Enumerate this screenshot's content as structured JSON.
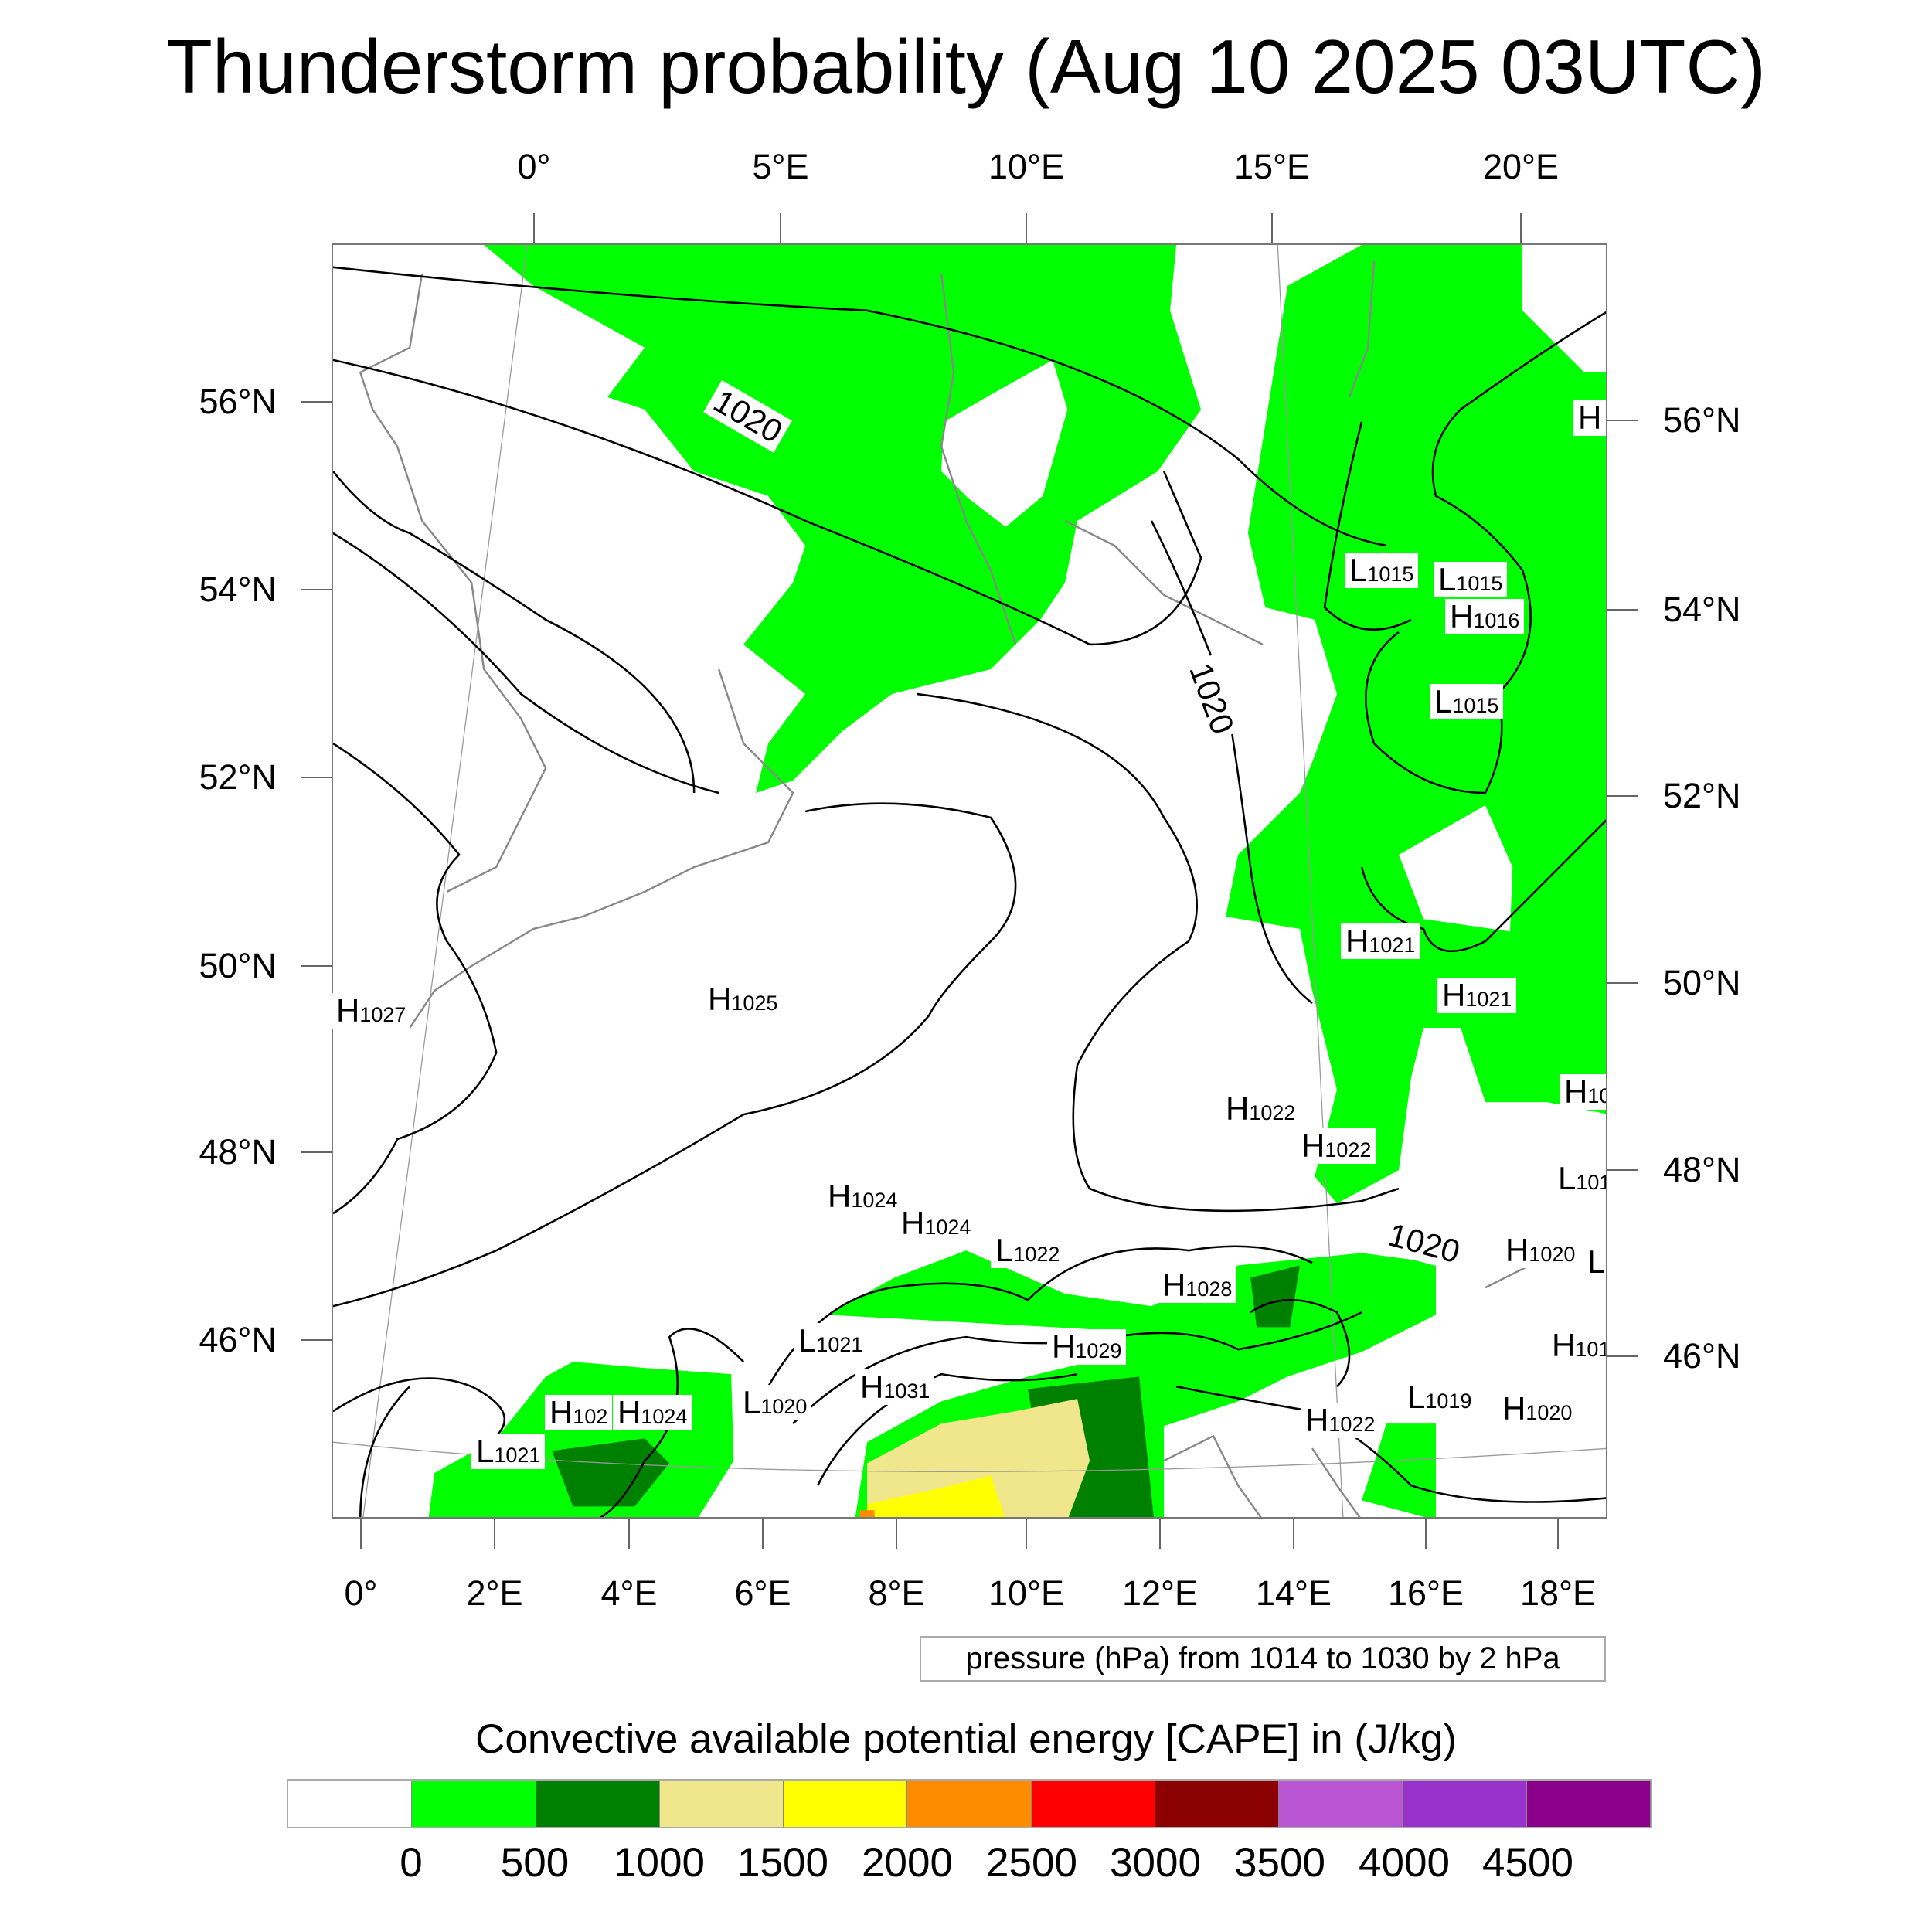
{
  "title": "Thunderstorm probability (Aug 10 2025 03UTC)",
  "top_lon_labels": [
    "0°",
    "5°E",
    "10°E",
    "15°E",
    "20°E"
  ],
  "left_lat_labels": [
    "56°N",
    "54°N",
    "52°N",
    "50°N",
    "48°N",
    "46°N"
  ],
  "right_lat_labels": [
    "56°N",
    "54°N",
    "52°N",
    "50°N",
    "48°N",
    "46°N"
  ],
  "bottom_lon_labels": [
    "0°",
    "2°E",
    "4°E",
    "6°E",
    "8°E",
    "10°E",
    "12°E",
    "14°E",
    "16°E",
    "18°E"
  ],
  "contour_labels": [
    "1020",
    "1020",
    "1020"
  ],
  "pressure_centers": [
    {
      "type": "H",
      "value": "1027"
    },
    {
      "type": "H",
      "value": "1025"
    },
    {
      "type": "H",
      "value": "1024"
    },
    {
      "type": "H",
      "value": "1024"
    },
    {
      "type": "L",
      "value": "1022"
    },
    {
      "type": "H",
      "value": "1028"
    },
    {
      "type": "H",
      "value": "1029"
    },
    {
      "type": "L",
      "value": "1021"
    },
    {
      "type": "H",
      "value": "1031"
    },
    {
      "type": "L",
      "value": "1020"
    },
    {
      "type": "H",
      "value": "102"
    },
    {
      "type": "H",
      "value": "1024"
    },
    {
      "type": "L",
      "value": "1021"
    },
    {
      "type": "H",
      "value": "1022"
    },
    {
      "type": "L",
      "value": "1019"
    },
    {
      "type": "H",
      "value": "1020"
    },
    {
      "type": "H",
      "value": "1020"
    },
    {
      "type": "L",
      "value": ""
    },
    {
      "type": "H",
      "value": "101"
    },
    {
      "type": "L",
      "value": "101"
    },
    {
      "type": "H",
      "value": "1022"
    },
    {
      "type": "H",
      "value": "1022"
    },
    {
      "type": "H",
      "value": "10"
    },
    {
      "type": "H",
      "value": "1021"
    },
    {
      "type": "H",
      "value": "1021"
    },
    {
      "type": "L",
      "value": "1015"
    },
    {
      "type": "L",
      "value": "1015"
    },
    {
      "type": "H",
      "value": "1016"
    },
    {
      "type": "L",
      "value": "1015"
    },
    {
      "type": "H",
      "value": ""
    }
  ],
  "contour_info": "pressure (hPa) from 1014 to 1030 by 2 hPa",
  "colorbar": {
    "title": "Convective available potential energy [CAPE] in (J/kg)",
    "labels": [
      "0",
      "500",
      "1000",
      "1500",
      "2000",
      "2500",
      "3000",
      "3500",
      "4000",
      "4500"
    ],
    "colors": [
      "#ffffff",
      "#00ff00",
      "#008000",
      "#f0e68c",
      "#ffff00",
      "#ff8c00",
      "#ff0000",
      "#8b0000",
      "#ba55d3",
      "#9932cc",
      "#8b008b"
    ]
  }
}
